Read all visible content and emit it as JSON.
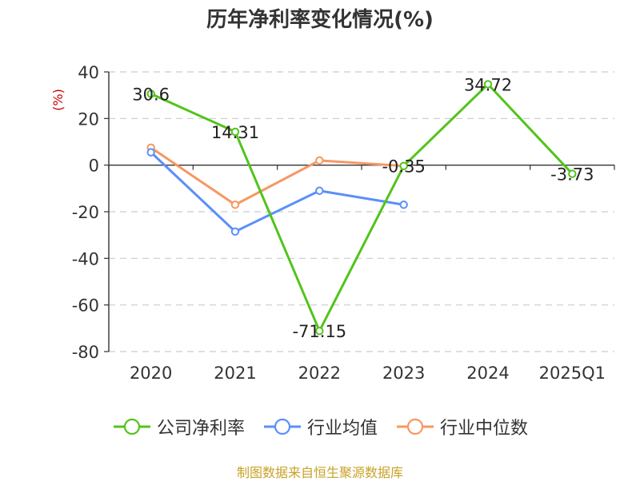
{
  "chart_data": {
    "type": "line",
    "title": "历年净利率变化情况(%)",
    "ylabel": "(%)",
    "categories": [
      "2020",
      "2021",
      "2022",
      "2023",
      "2024",
      "2025Q1"
    ],
    "ylim": [
      -80,
      40
    ],
    "yticks": [
      40,
      20,
      0,
      -20,
      -40,
      -60,
      -80
    ],
    "grid": true,
    "legend_position": "bottom",
    "series": [
      {
        "name": "公司净利率",
        "color": "#52c41a",
        "values": [
          30.6,
          14.31,
          -71.15,
          -0.35,
          34.72,
          -3.73
        ],
        "labels": [
          "30.6",
          "14.31",
          "-71.15",
          "-0.35",
          "34.72",
          "-3.73"
        ]
      },
      {
        "name": "行业均值",
        "color": "#5b8ff9",
        "values": [
          5.5,
          -28.5,
          -11,
          -17,
          null,
          null
        ]
      },
      {
        "name": "行业中位数",
        "color": "#f79761",
        "values": [
          7.5,
          -17,
          2,
          -0.35,
          null,
          null
        ]
      }
    ]
  },
  "source_note": "制图数据来自恒生聚源数据库"
}
